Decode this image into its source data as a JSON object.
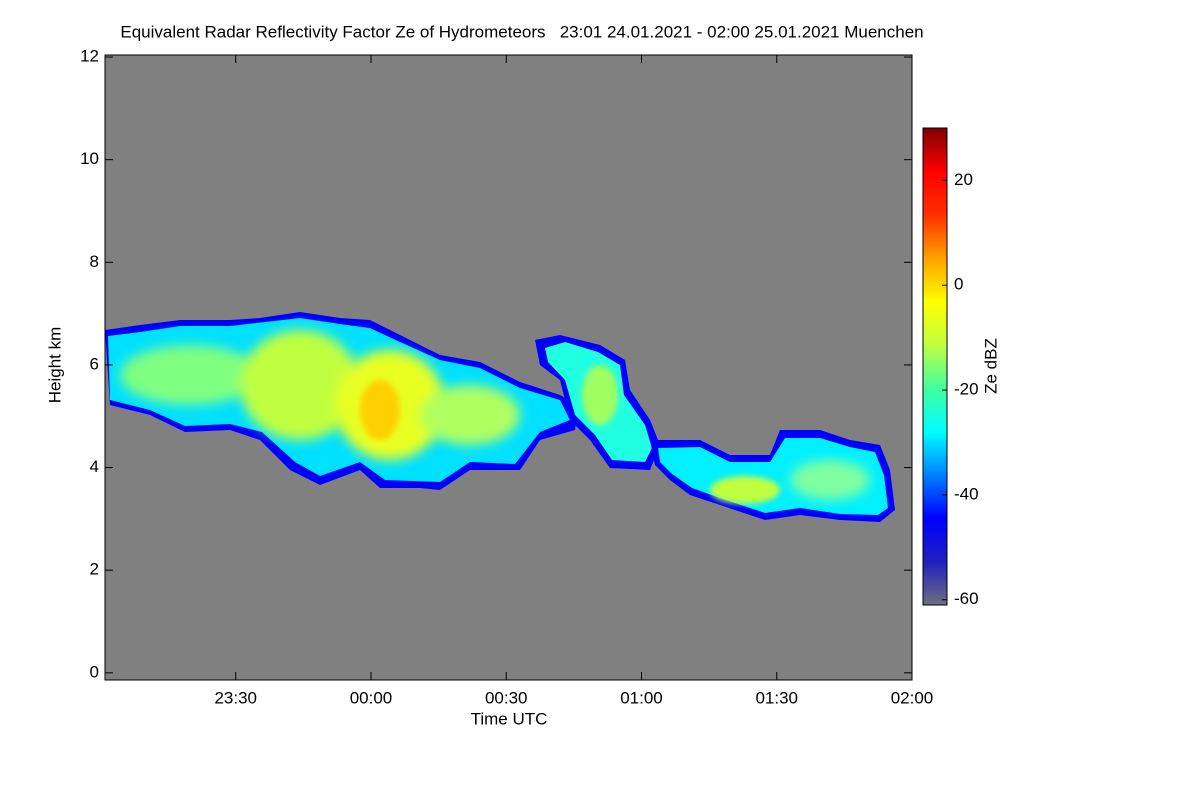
{
  "chart_data": {
    "type": "heatmap",
    "title": "Equivalent Radar Reflectivity Factor Ze of Hydrometeors   23:01 24.01.2021 - 02:00 25.01.2021 Muenchen",
    "xlabel": "Time UTC",
    "ylabel": "Height km",
    "xlim": [
      23.0167,
      26.0
    ],
    "xticks": [
      {
        "value": 23.5,
        "label": "23:30"
      },
      {
        "value": 24,
        "label": "00:00"
      },
      {
        "value": 24.5,
        "label": "00:30"
      },
      {
        "value": 25,
        "label": "01:00"
      },
      {
        "value": 25.5,
        "label": "01:30"
      },
      {
        "value": 26,
        "label": "02:00"
      }
    ],
    "ylim": [
      -0.14,
      12.04
    ],
    "yticks": [
      0,
      2,
      4,
      6,
      8,
      10,
      12
    ],
    "background": "#808080",
    "colorbar": {
      "label": "Ze dBZ",
      "lim": [
        -61,
        30
      ],
      "ticks": [
        -60,
        -40,
        -20,
        0,
        20
      ],
      "colormap": [
        "#6e6e80",
        "#2020c0",
        "#0000ff",
        "#0080ff",
        "#00ffff",
        "#40ffa0",
        "#c0ff40",
        "#ffff00",
        "#ffa000",
        "#ff3000",
        "#ff0000",
        "#800000"
      ]
    }
  }
}
